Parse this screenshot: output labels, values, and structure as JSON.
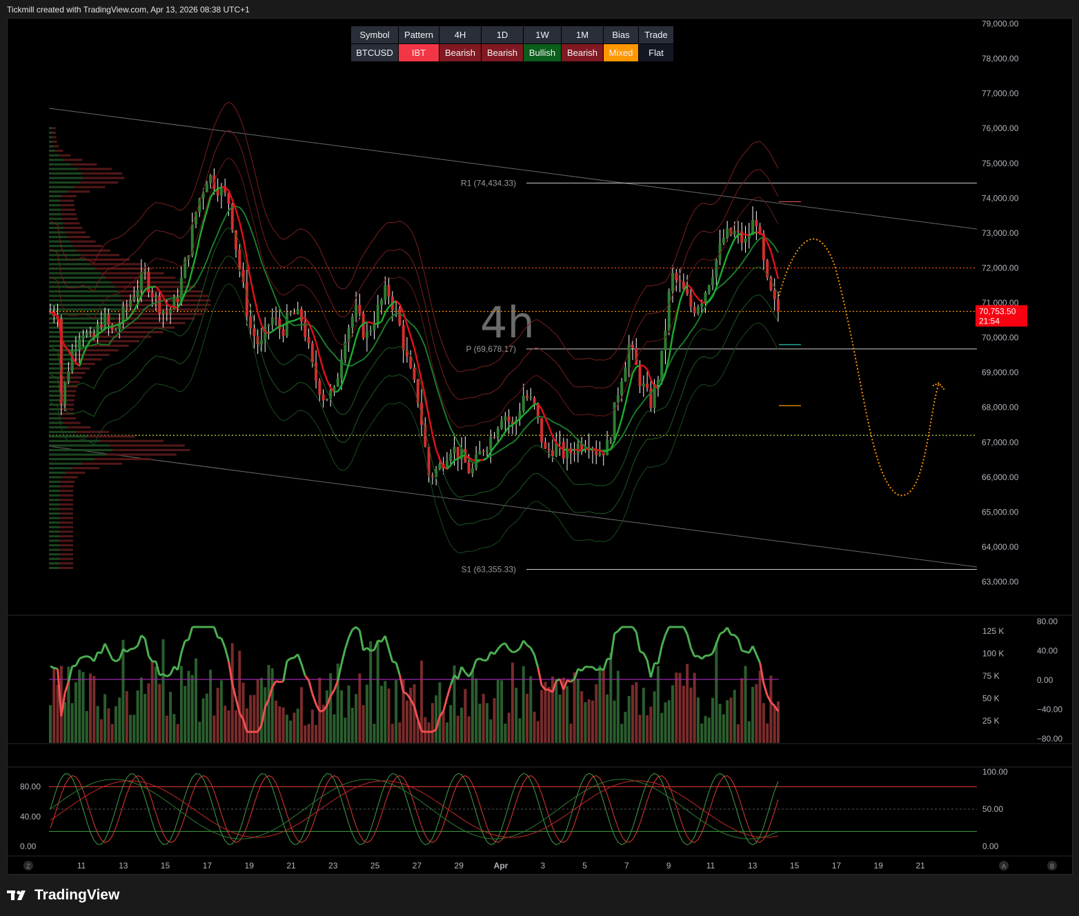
{
  "header": {
    "text": "Tickmill created with TradingView.com, Apr 13, 2026 08:38 UTC+1"
  },
  "footer": {
    "brand": "TradingView"
  },
  "status_table": {
    "headers": [
      "Symbol",
      "Pattern",
      "4H",
      "1D",
      "1W",
      "1M",
      "Bias",
      "Trade"
    ],
    "values": [
      {
        "text": "BTCUSD",
        "color": "#2a2e39"
      },
      {
        "text": "IBT",
        "color": "#f23645"
      },
      {
        "text": "Bearish",
        "color": "#801922"
      },
      {
        "text": "Bearish",
        "color": "#801922"
      },
      {
        "text": "Bullish",
        "color": "#0b5e1c"
      },
      {
        "text": "Bearish",
        "color": "#801922"
      },
      {
        "text": "Mixed",
        "color": "#ff9800"
      },
      {
        "text": "Flat",
        "color": "#131722"
      }
    ],
    "header_color": "#2a2e39"
  },
  "chart_data": [
    {
      "type": "candlestick",
      "symbol": "BTCUSD",
      "interval_watermark": "4h",
      "y_ticks": [
        "79,000.00",
        "78,000.00",
        "77,000.00",
        "76,000.00",
        "75,000.00",
        "74,000.00",
        "73,000.00",
        "72,000.00",
        "71,000.00",
        "70,000.00",
        "69,000.00",
        "68,000.00",
        "67,000.00",
        "66,000.00",
        "65,000.00",
        "64,000.00",
        "63,000.00"
      ],
      "ylim": [
        62500,
        79200
      ],
      "current_price": {
        "label": "70,753.50",
        "countdown": "21:54",
        "value": 70753.5,
        "color": "#f7000f"
      },
      "pivots": [
        {
          "label": "R1 (74,434.33)",
          "value": 74434.33
        },
        {
          "label": "P (69,678.17)",
          "value": 69678.17
        },
        {
          "label": "S1 (63,355.33)",
          "value": 63355.33
        }
      ],
      "horizontal_levels": [
        {
          "value": 72000,
          "color": "#ff5722",
          "style": "dotted"
        },
        {
          "value": 70753.5,
          "color": "#ff9800",
          "style": "dotted"
        },
        {
          "value": 67200,
          "color": "#cddc39",
          "style": "dotted"
        }
      ],
      "close_path_points": [
        [
          "Mar 10",
          68000
        ],
        [
          "Mar 10.5",
          69500
        ],
        [
          "Mar 11",
          70300
        ],
        [
          "Mar 11.5",
          69800
        ],
        [
          "Mar 12",
          70600
        ],
        [
          "Mar 12.5",
          70100
        ],
        [
          "Mar 13",
          70700
        ],
        [
          "Mar 13.5",
          71300
        ],
        [
          "Mar 14",
          71800
        ],
        [
          "Mar 14.5",
          71100
        ],
        [
          "Mar 15",
          70700
        ],
        [
          "Mar 15.5",
          71000
        ],
        [
          "Mar 16",
          72300
        ],
        [
          "Mar 16.5",
          73800
        ],
        [
          "Mar 17",
          74700
        ],
        [
          "Mar 17.5",
          74300
        ],
        [
          "Mar 18",
          73900
        ],
        [
          "Mar 18.5",
          72000
        ],
        [
          "Mar 19",
          70300
        ],
        [
          "Mar 19.5",
          69700
        ],
        [
          "Mar 20",
          70600
        ],
        [
          "Mar 20.5",
          70200
        ],
        [
          "Mar 21",
          70700
        ],
        [
          "Mar 21.5",
          70500
        ],
        [
          "Mar 22",
          69000
        ],
        [
          "Mar 22.5",
          68300
        ],
        [
          "Mar 23",
          68400
        ],
        [
          "Mar 23.5",
          70100
        ],
        [
          "Mar 24",
          70800
        ],
        [
          "Mar 24.5",
          70000
        ],
        [
          "Mar 25",
          70700
        ],
        [
          "Mar 25.5",
          71400
        ],
        [
          "Mar 26",
          70600
        ],
        [
          "Mar 26.5",
          69200
        ],
        [
          "Mar 27",
          68200
        ],
        [
          "Mar 27.5",
          66000
        ],
        [
          "Mar 28",
          66300
        ],
        [
          "Mar 28.5",
          66900
        ],
        [
          "Mar 29",
          66600
        ],
        [
          "Mar 29.5",
          66100
        ],
        [
          "Mar 30",
          66800
        ],
        [
          "Mar 30.5",
          67200
        ],
        [
          "Mar 31",
          67900
        ],
        [
          "Mar 31.5",
          67400
        ],
        [
          "Apr 1",
          68400
        ],
        [
          "Apr 1.5",
          68000
        ],
        [
          "Apr 2",
          66700
        ],
        [
          "Apr 2.5",
          66900
        ],
        [
          "Apr 3",
          66600
        ],
        [
          "Apr 3.5",
          66900
        ],
        [
          "Apr 4",
          67100
        ],
        [
          "Apr 4.5",
          66700
        ],
        [
          "Apr 5",
          66900
        ],
        [
          "Apr 5.5",
          68600
        ],
        [
          "Apr 6",
          69800
        ],
        [
          "Apr 6.5",
          68800
        ],
        [
          "Apr 7",
          68100
        ],
        [
          "Apr 7.5",
          69200
        ],
        [
          "Apr 8",
          71800
        ],
        [
          "Apr 8.5",
          71400
        ],
        [
          "Apr 9",
          70800
        ],
        [
          "Apr 9.5",
          71200
        ],
        [
          "Apr 10",
          72000
        ],
        [
          "Apr 10.5",
          72900
        ],
        [
          "Apr 11",
          73000
        ],
        [
          "Apr 11.5",
          72700
        ],
        [
          "Apr 12",
          73500
        ],
        [
          "Apr 12.5",
          71600
        ],
        [
          "Apr 13",
          70750
        ]
      ],
      "projection": {
        "peak": 73000,
        "trough": 65500,
        "end": 68700,
        "color": "#ff9800",
        "style": "dotted"
      }
    },
    {
      "type": "volume_oscillator",
      "volume_ticks": [
        "125 K",
        "100 K",
        "75 K",
        "50 K",
        "25 K"
      ],
      "osc_ticks": [
        "80.00",
        "40.00",
        "0.00",
        "−40.00",
        "−80.00"
      ],
      "zero_line_color": "#9c27b0"
    },
    {
      "type": "stochastic",
      "left_ticks": [
        "80.00",
        "40.00",
        "0.00"
      ],
      "right_ticks": [
        "100.00",
        "50.00",
        "0.00"
      ],
      "upper": 80,
      "lower": 20
    }
  ],
  "x_axis": {
    "ticks": [
      "11",
      "13",
      "15",
      "17",
      "19",
      "21",
      "23",
      "25",
      "27",
      "29",
      "Apr",
      "3",
      "5",
      "7",
      "9",
      "11",
      "13",
      "15",
      "17",
      "19",
      "21"
    ],
    "buttons": [
      "Z",
      "A",
      "B"
    ]
  },
  "colors": {
    "up": "#2e7d32",
    "down": "#d32f2f",
    "wick": "#ffffff"
  }
}
